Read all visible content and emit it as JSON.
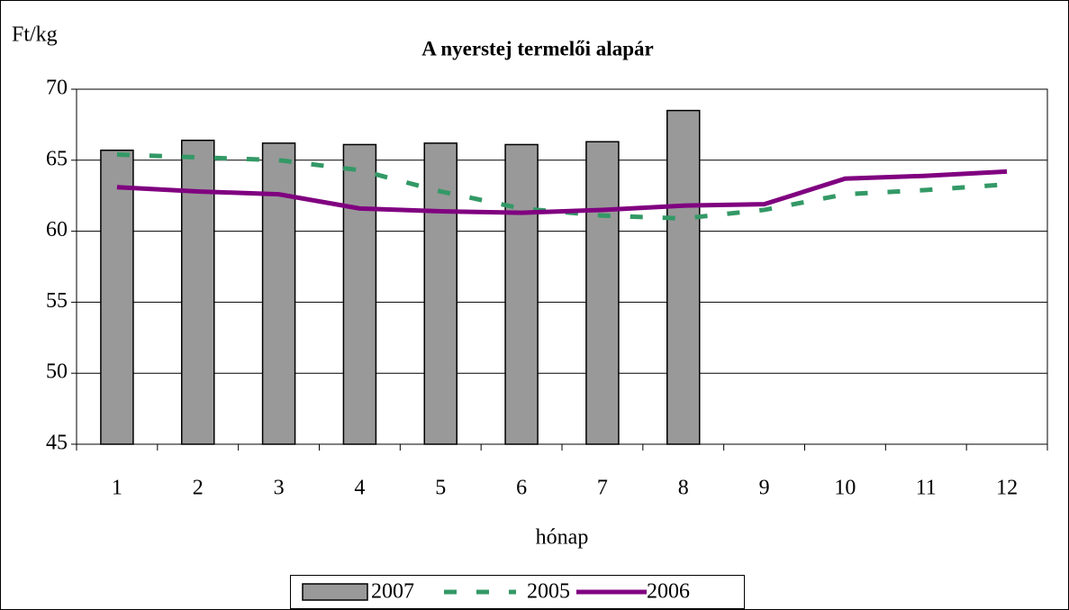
{
  "chart_data": {
    "type": "bar",
    "title": "A nyerstej termelői alapár",
    "y_label": "Ft/kg",
    "x_label": "hónap",
    "categories": [
      "1",
      "2",
      "3",
      "4",
      "5",
      "6",
      "7",
      "8",
      "9",
      "10",
      "11",
      "12"
    ],
    "series": [
      {
        "name": "2007",
        "type": "bar",
        "color": "#999999",
        "values": [
          65.7,
          66.4,
          66.2,
          66.1,
          66.2,
          66.1,
          66.3,
          68.5,
          null,
          null,
          null,
          null
        ]
      },
      {
        "name": "2005",
        "type": "line",
        "dash": "dashed",
        "color": "#339966",
        "values": [
          65.4,
          65.2,
          65.0,
          64.3,
          62.8,
          61.6,
          61.1,
          60.9,
          61.5,
          62.6,
          62.9,
          63.3
        ]
      },
      {
        "name": "2006",
        "type": "line",
        "dash": "solid",
        "color": "#800080",
        "values": [
          63.1,
          62.8,
          62.6,
          61.6,
          61.4,
          61.3,
          61.5,
          61.8,
          61.9,
          63.7,
          63.9,
          64.2
        ]
      }
    ],
    "ylim": [
      45,
      70
    ],
    "yticks": [
      45,
      50,
      55,
      60,
      65,
      70
    ],
    "grid": true,
    "legend": "bottom"
  }
}
